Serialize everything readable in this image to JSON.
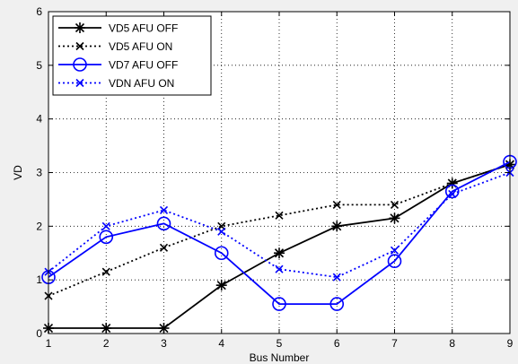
{
  "chart_data": {
    "type": "line",
    "title": "",
    "xlabel": "Bus Number",
    "ylabel": "VD",
    "xlim": [
      1,
      9
    ],
    "ylim": [
      0,
      6
    ],
    "x": [
      1,
      2,
      3,
      4,
      5,
      6,
      7,
      8,
      9
    ],
    "xticks": [
      "1",
      "2",
      "3",
      "4",
      "5",
      "6",
      "7",
      "8",
      "9"
    ],
    "yticks": [
      "0",
      "1",
      "2",
      "3",
      "4",
      "5",
      "6"
    ],
    "grid": true,
    "legend_position": "top-left",
    "series": [
      {
        "name": "VD5 AFU OFF",
        "color": "#000000",
        "line": "solid",
        "marker": "star",
        "values": [
          0.1,
          0.1,
          0.1,
          0.9,
          1.5,
          2.0,
          2.15,
          2.8,
          3.15
        ]
      },
      {
        "name": "VD5 AFU ON",
        "color": "#000000",
        "line": "dotted",
        "marker": "x",
        "values": [
          0.7,
          1.15,
          1.6,
          2.0,
          2.2,
          2.4,
          2.4,
          2.8,
          3.15
        ]
      },
      {
        "name": "VD7 AFU OFF",
        "color": "#0000ff",
        "line": "solid",
        "marker": "circle",
        "values": [
          1.05,
          1.8,
          2.05,
          1.5,
          0.55,
          0.55,
          1.35,
          2.65,
          3.2
        ]
      },
      {
        "name": "VDN AFU ON",
        "color": "#0000ff",
        "line": "dotted",
        "marker": "x",
        "values": [
          1.15,
          2.0,
          2.3,
          1.9,
          1.2,
          1.05,
          1.55,
          2.6,
          3.0
        ]
      }
    ]
  }
}
